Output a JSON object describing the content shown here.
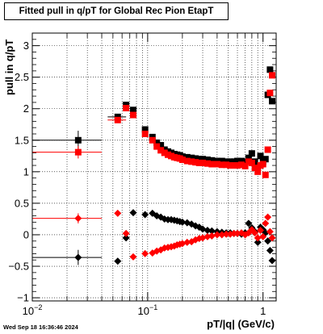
{
  "title": "Fitted pull in q/pT for Global Rec Pion EtapT",
  "xlabel": "pT/|q| (GeV/c)",
  "ylabel": "pull in q/pT",
  "datestamp": "Wed Sep 18 16:36:46 2024",
  "y_tick_labels": [
    "−1",
    "−0.5",
    "0",
    "0.5",
    "1",
    "1.5",
    "2",
    "2.5",
    "3"
  ],
  "x_tick_labels": [
    {
      "base": "10",
      "exp": "−2"
    },
    {
      "base": "10",
      "exp": "−1"
    },
    {
      "base": "1",
      "exp": ""
    }
  ],
  "chart_data": {
    "type": "scatter",
    "xscale": "log",
    "xlim": [
      0.01,
      1.3
    ],
    "ylim": [
      -1.05,
      3.2
    ],
    "grid": true,
    "series": [
      {
        "color": "#000000",
        "marker": "square",
        "points": [
          {
            "x": 0.025,
            "y": 1.5,
            "xerr": [
              0.01,
              0.04
            ],
            "yerr": 0.15
          },
          {
            "x": 0.055,
            "y": 1.87,
            "xerr": [
              0.045,
              0.065
            ]
          },
          {
            "x": 0.065,
            "y": 2.06
          },
          {
            "x": 0.075,
            "y": 1.98
          },
          {
            "x": 0.095,
            "y": 1.67
          },
          {
            "x": 0.11,
            "y": 1.55
          },
          {
            "x": 0.12,
            "y": 1.46
          },
          {
            "x": 0.13,
            "y": 1.42
          },
          {
            "x": 0.14,
            "y": 1.35
          },
          {
            "x": 0.15,
            "y": 1.32
          },
          {
            "x": 0.16,
            "y": 1.3
          },
          {
            "x": 0.17,
            "y": 1.28
          },
          {
            "x": 0.18,
            "y": 1.27
          },
          {
            "x": 0.19,
            "y": 1.26
          },
          {
            "x": 0.2,
            "y": 1.24
          },
          {
            "x": 0.22,
            "y": 1.23
          },
          {
            "x": 0.24,
            "y": 1.22
          },
          {
            "x": 0.26,
            "y": 1.21
          },
          {
            "x": 0.28,
            "y": 1.2
          },
          {
            "x": 0.3,
            "y": 1.2
          },
          {
            "x": 0.33,
            "y": 1.19
          },
          {
            "x": 0.36,
            "y": 1.18
          },
          {
            "x": 0.4,
            "y": 1.17
          },
          {
            "x": 0.44,
            "y": 1.17
          },
          {
            "x": 0.48,
            "y": 1.16
          },
          {
            "x": 0.52,
            "y": 1.16
          },
          {
            "x": 0.56,
            "y": 1.16
          },
          {
            "x": 0.6,
            "y": 1.17
          },
          {
            "x": 0.65,
            "y": 1.17
          },
          {
            "x": 0.7,
            "y": 1.16
          },
          {
            "x": 0.75,
            "y": 1.22
          },
          {
            "x": 0.8,
            "y": 1.29
          },
          {
            "x": 0.85,
            "y": 1.16
          },
          {
            "x": 0.9,
            "y": 1.06
          },
          {
            "x": 0.95,
            "y": 1.25
          },
          {
            "x": 1.0,
            "y": 1.16
          },
          {
            "x": 1.05,
            "y": 1.2
          },
          {
            "x": 1.1,
            "y": 2.22
          },
          {
            "x": 1.15,
            "y": 2.62
          },
          {
            "x": 1.2,
            "y": 2.12
          }
        ]
      },
      {
        "color": "#ff0000",
        "marker": "square",
        "points": [
          {
            "x": 0.025,
            "y": 1.31,
            "xerr": [
              0.01,
              0.04
            ],
            "yerr": 0.1
          },
          {
            "x": 0.055,
            "y": 1.82,
            "xerr": [
              0.045,
              0.065
            ]
          },
          {
            "x": 0.065,
            "y": 2.01
          },
          {
            "x": 0.075,
            "y": 1.9
          },
          {
            "x": 0.095,
            "y": 1.6
          },
          {
            "x": 0.11,
            "y": 1.5
          },
          {
            "x": 0.12,
            "y": 1.4
          },
          {
            "x": 0.13,
            "y": 1.34
          },
          {
            "x": 0.14,
            "y": 1.3
          },
          {
            "x": 0.15,
            "y": 1.27
          },
          {
            "x": 0.16,
            "y": 1.25
          },
          {
            "x": 0.17,
            "y": 1.23
          },
          {
            "x": 0.18,
            "y": 1.22
          },
          {
            "x": 0.19,
            "y": 1.21
          },
          {
            "x": 0.2,
            "y": 1.19
          },
          {
            "x": 0.22,
            "y": 1.17
          },
          {
            "x": 0.24,
            "y": 1.16
          },
          {
            "x": 0.26,
            "y": 1.15
          },
          {
            "x": 0.28,
            "y": 1.14
          },
          {
            "x": 0.3,
            "y": 1.14
          },
          {
            "x": 0.33,
            "y": 1.13
          },
          {
            "x": 0.36,
            "y": 1.12
          },
          {
            "x": 0.4,
            "y": 1.12
          },
          {
            "x": 0.44,
            "y": 1.11
          },
          {
            "x": 0.48,
            "y": 1.11
          },
          {
            "x": 0.52,
            "y": 1.1
          },
          {
            "x": 0.56,
            "y": 1.1
          },
          {
            "x": 0.6,
            "y": 1.1
          },
          {
            "x": 0.65,
            "y": 1.11
          },
          {
            "x": 0.7,
            "y": 1.09
          },
          {
            "x": 0.75,
            "y": 1.16
          },
          {
            "x": 0.8,
            "y": 1.14
          },
          {
            "x": 0.85,
            "y": 1.06
          },
          {
            "x": 0.9,
            "y": 1.0
          },
          {
            "x": 0.95,
            "y": 1.1
          },
          {
            "x": 1.0,
            "y": 1.12
          },
          {
            "x": 1.05,
            "y": 0.95
          },
          {
            "x": 1.1,
            "y": 1.35
          },
          {
            "x": 1.15,
            "y": 2.25
          },
          {
            "x": 1.2,
            "y": 2.53
          }
        ]
      },
      {
        "color": "#000000",
        "marker": "diamond",
        "points": [
          {
            "x": 0.025,
            "y": -0.36,
            "xerr": [
              0.01,
              0.04
            ],
            "yerr": 0.12
          },
          {
            "x": 0.055,
            "y": -0.42
          },
          {
            "x": 0.065,
            "y": -0.05
          },
          {
            "x": 0.075,
            "y": 0.35
          },
          {
            "x": 0.095,
            "y": 0.32
          },
          {
            "x": 0.11,
            "y": 0.34
          },
          {
            "x": 0.12,
            "y": 0.3
          },
          {
            "x": 0.13,
            "y": 0.28
          },
          {
            "x": 0.14,
            "y": 0.25
          },
          {
            "x": 0.15,
            "y": 0.24
          },
          {
            "x": 0.16,
            "y": 0.24
          },
          {
            "x": 0.17,
            "y": 0.23
          },
          {
            "x": 0.18,
            "y": 0.22
          },
          {
            "x": 0.19,
            "y": 0.21
          },
          {
            "x": 0.2,
            "y": 0.2
          },
          {
            "x": 0.22,
            "y": 0.19
          },
          {
            "x": 0.24,
            "y": 0.17
          },
          {
            "x": 0.26,
            "y": 0.14
          },
          {
            "x": 0.28,
            "y": 0.12
          },
          {
            "x": 0.3,
            "y": 0.09
          },
          {
            "x": 0.33,
            "y": 0.07
          },
          {
            "x": 0.36,
            "y": 0.06
          },
          {
            "x": 0.4,
            "y": 0.05
          },
          {
            "x": 0.44,
            "y": 0.04
          },
          {
            "x": 0.48,
            "y": 0.03
          },
          {
            "x": 0.52,
            "y": 0.03
          },
          {
            "x": 0.56,
            "y": 0.02
          },
          {
            "x": 0.6,
            "y": 0.02
          },
          {
            "x": 0.65,
            "y": 0.01
          },
          {
            "x": 0.7,
            "y": 0.03
          },
          {
            "x": 0.75,
            "y": 0.18
          },
          {
            "x": 0.8,
            "y": 0.11
          },
          {
            "x": 0.85,
            "y": 0.05
          },
          {
            "x": 0.9,
            "y": -0.12
          },
          {
            "x": 0.95,
            "y": 0.12
          },
          {
            "x": 1.0,
            "y": 0.08
          },
          {
            "x": 1.05,
            "y": 0.03
          },
          {
            "x": 1.1,
            "y": -0.1
          },
          {
            "x": 1.15,
            "y": -0.25
          },
          {
            "x": 1.2,
            "y": -0.41
          }
        ]
      },
      {
        "color": "#ff0000",
        "marker": "diamond",
        "points": [
          {
            "x": 0.025,
            "y": 0.26,
            "xerr": [
              0.01,
              0.04
            ],
            "yerr": 0.08
          },
          {
            "x": 0.055,
            "y": 0.34
          },
          {
            "x": 0.065,
            "y": 0.02
          },
          {
            "x": 0.075,
            "y": -0.35
          },
          {
            "x": 0.095,
            "y": -0.3
          },
          {
            "x": 0.11,
            "y": -0.29
          },
          {
            "x": 0.12,
            "y": -0.26
          },
          {
            "x": 0.13,
            "y": -0.24
          },
          {
            "x": 0.14,
            "y": -0.21
          },
          {
            "x": 0.15,
            "y": -0.2
          },
          {
            "x": 0.16,
            "y": -0.19
          },
          {
            "x": 0.17,
            "y": -0.18
          },
          {
            "x": 0.18,
            "y": -0.16
          },
          {
            "x": 0.19,
            "y": -0.15
          },
          {
            "x": 0.2,
            "y": -0.14
          },
          {
            "x": 0.22,
            "y": -0.12
          },
          {
            "x": 0.24,
            "y": -0.11
          },
          {
            "x": 0.26,
            "y": -0.08
          },
          {
            "x": 0.28,
            "y": -0.06
          },
          {
            "x": 0.3,
            "y": -0.05
          },
          {
            "x": 0.33,
            "y": -0.03
          },
          {
            "x": 0.36,
            "y": -0.02
          },
          {
            "x": 0.4,
            "y": 0.0
          },
          {
            "x": 0.44,
            "y": 0.0
          },
          {
            "x": 0.48,
            "y": 0.01
          },
          {
            "x": 0.52,
            "y": 0.01
          },
          {
            "x": 0.56,
            "y": 0.02
          },
          {
            "x": 0.6,
            "y": 0.02
          },
          {
            "x": 0.65,
            "y": 0.03
          },
          {
            "x": 0.7,
            "y": 0.0
          },
          {
            "x": 0.75,
            "y": 0.03
          },
          {
            "x": 0.8,
            "y": 0.08
          },
          {
            "x": 0.85,
            "y": 0.03
          },
          {
            "x": 0.9,
            "y": -0.05
          },
          {
            "x": 0.95,
            "y": 0.07
          },
          {
            "x": 1.0,
            "y": -0.03
          },
          {
            "x": 1.05,
            "y": 0.18
          },
          {
            "x": 1.1,
            "y": 0.28
          },
          {
            "x": 1.15,
            "y": 0.05
          },
          {
            "x": 1.2,
            "y": -0.05
          }
        ]
      }
    ]
  }
}
